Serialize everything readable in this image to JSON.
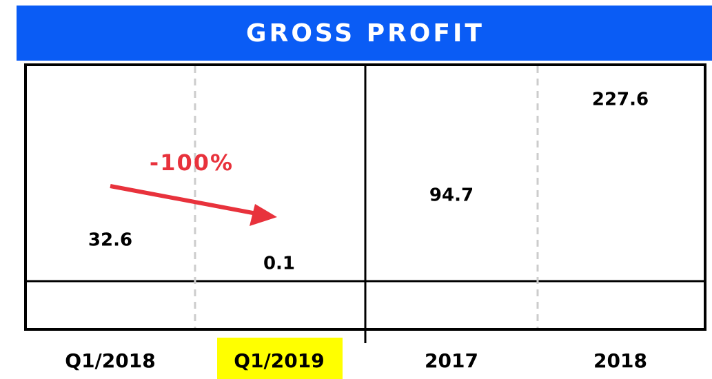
{
  "chart_data": {
    "type": "bar",
    "title": "GROSS PROFIT",
    "categories": [
      "Q1/2018",
      "Q1/2019",
      "2017",
      "2018"
    ],
    "values": [
      32.6,
      0.1,
      94.7,
      227.6
    ],
    "highlight": "Q1/2019",
    "annotation": "-100%"
  }
}
